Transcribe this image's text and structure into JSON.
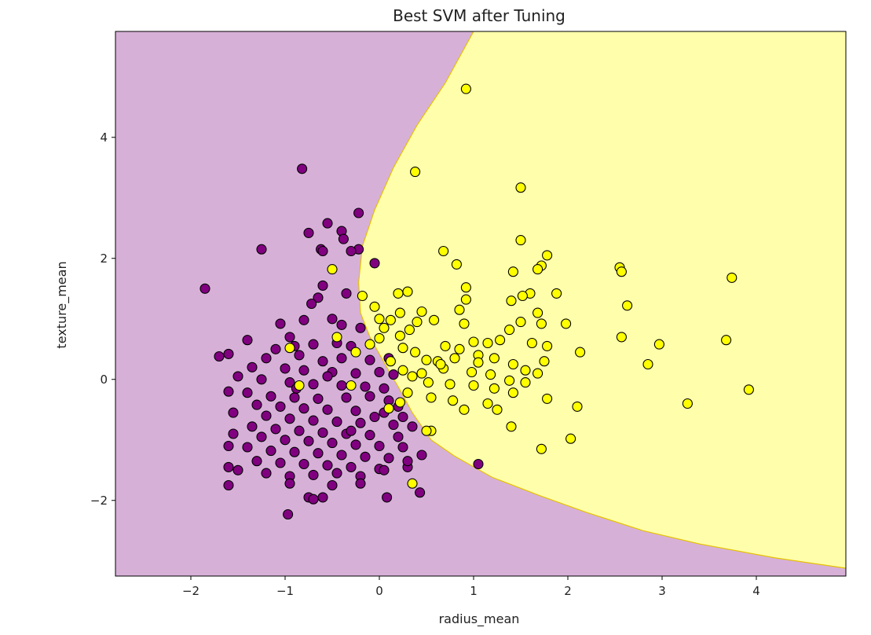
{
  "chart_data": {
    "type": "scatter",
    "title": "Best SVM after Tuning",
    "xlabel": "radius_mean",
    "ylabel": "texture_mean",
    "xlim": [
      -2.8,
      4.95
    ],
    "ylim": [
      -3.25,
      5.75
    ],
    "xticks": [
      -2,
      -1,
      0,
      1,
      2,
      3,
      4
    ],
    "xtick_labels": [
      "−2",
      "−1",
      "0",
      "1",
      "2",
      "3",
      "4"
    ],
    "yticks": [
      -2,
      0,
      2,
      4
    ],
    "ytick_labels": [
      "−2",
      "0",
      "2",
      "4"
    ],
    "grid": false,
    "legend": "none",
    "decision_regions": {
      "colors": {
        "class_0": "#d7b0d8",
        "class_1": "#ffffab"
      },
      "boundary_color": "#e5c000",
      "boundary": [
        [
          4.95,
          -3.12
        ],
        [
          4.2,
          -2.95
        ],
        [
          3.4,
          -2.72
        ],
        [
          2.8,
          -2.5
        ],
        [
          2.2,
          -2.2
        ],
        [
          1.7,
          -1.92
        ],
        [
          1.2,
          -1.62
        ],
        [
          0.8,
          -1.27
        ],
        [
          0.55,
          -1.0
        ],
        [
          0.35,
          -0.55
        ],
        [
          0.2,
          -0.12
        ],
        [
          0.05,
          0.28
        ],
        [
          -0.1,
          0.7
        ],
        [
          -0.2,
          1.1
        ],
        [
          -0.22,
          1.6
        ],
        [
          -0.18,
          2.2
        ],
        [
          -0.05,
          2.8
        ],
        [
          0.15,
          3.5
        ],
        [
          0.4,
          4.2
        ],
        [
          0.7,
          4.9
        ],
        [
          1.0,
          5.75
        ]
      ]
    },
    "series": [
      {
        "color": "#800080",
        "points": [
          [
            -0.82,
            3.48
          ],
          [
            -0.22,
            2.75
          ],
          [
            -0.55,
            2.58
          ],
          [
            -0.4,
            2.45
          ],
          [
            -0.75,
            2.42
          ],
          [
            -0.38,
            2.32
          ],
          [
            -0.22,
            2.15
          ],
          [
            -0.3,
            2.12
          ],
          [
            -0.62,
            2.15
          ],
          [
            -0.6,
            2.12
          ],
          [
            -1.25,
            2.15
          ],
          [
            -0.05,
            1.92
          ],
          [
            -1.85,
            1.5
          ],
          [
            -0.6,
            1.55
          ],
          [
            -0.35,
            1.42
          ],
          [
            -0.65,
            1.35
          ],
          [
            -0.72,
            1.25
          ],
          [
            -0.5,
            1.0
          ],
          [
            -0.8,
            0.98
          ],
          [
            -1.05,
            0.92
          ],
          [
            -0.4,
            0.9
          ],
          [
            -0.2,
            0.85
          ],
          [
            -0.95,
            0.7
          ],
          [
            -1.4,
            0.65
          ],
          [
            -1.1,
            0.5
          ],
          [
            -0.9,
            0.55
          ],
          [
            -0.7,
            0.58
          ],
          [
            -0.45,
            0.6
          ],
          [
            -0.3,
            0.55
          ],
          [
            -1.6,
            0.42
          ],
          [
            -1.7,
            0.38
          ],
          [
            -1.2,
            0.35
          ],
          [
            -0.85,
            0.4
          ],
          [
            -0.6,
            0.3
          ],
          [
            -0.4,
            0.35
          ],
          [
            -0.1,
            0.32
          ],
          [
            0.1,
            0.35
          ],
          [
            -1.35,
            0.2
          ],
          [
            -1.0,
            0.18
          ],
          [
            -0.8,
            0.15
          ],
          [
            -0.5,
            0.12
          ],
          [
            -0.25,
            0.1
          ],
          [
            0.0,
            0.12
          ],
          [
            0.15,
            0.08
          ],
          [
            -1.5,
            0.05
          ],
          [
            -1.25,
            0.0
          ],
          [
            -0.95,
            -0.05
          ],
          [
            -0.7,
            -0.08
          ],
          [
            -0.4,
            -0.1
          ],
          [
            -0.15,
            -0.12
          ],
          [
            0.05,
            -0.15
          ],
          [
            -1.6,
            -0.2
          ],
          [
            -1.4,
            -0.22
          ],
          [
            -1.15,
            -0.28
          ],
          [
            -0.9,
            -0.3
          ],
          [
            -0.65,
            -0.32
          ],
          [
            -0.35,
            -0.3
          ],
          [
            -0.1,
            -0.28
          ],
          [
            0.1,
            -0.35
          ],
          [
            0.2,
            -0.45
          ],
          [
            -1.3,
            -0.42
          ],
          [
            -1.05,
            -0.45
          ],
          [
            -0.8,
            -0.48
          ],
          [
            -0.55,
            -0.5
          ],
          [
            -0.25,
            -0.52
          ],
          [
            0.05,
            -0.55
          ],
          [
            0.25,
            -0.62
          ],
          [
            -1.55,
            -0.55
          ],
          [
            -1.2,
            -0.6
          ],
          [
            -0.95,
            -0.65
          ],
          [
            -0.7,
            -0.68
          ],
          [
            -0.45,
            -0.7
          ],
          [
            -0.2,
            -0.72
          ],
          [
            0.15,
            -0.75
          ],
          [
            0.35,
            -0.78
          ],
          [
            -1.35,
            -0.78
          ],
          [
            -1.1,
            -0.82
          ],
          [
            -0.85,
            -0.85
          ],
          [
            -0.6,
            -0.88
          ],
          [
            -0.35,
            -0.9
          ],
          [
            -0.1,
            -0.92
          ],
          [
            0.2,
            -0.95
          ],
          [
            -1.55,
            -0.9
          ],
          [
            -1.25,
            -0.95
          ],
          [
            -1.0,
            -1.0
          ],
          [
            -0.75,
            -1.02
          ],
          [
            -0.5,
            -1.05
          ],
          [
            -0.25,
            -1.08
          ],
          [
            0.0,
            -1.1
          ],
          [
            0.25,
            -1.12
          ],
          [
            -1.6,
            -1.1
          ],
          [
            -1.4,
            -1.12
          ],
          [
            -1.15,
            -1.18
          ],
          [
            -0.9,
            -1.2
          ],
          [
            -0.65,
            -1.22
          ],
          [
            -0.4,
            -1.25
          ],
          [
            -0.15,
            -1.28
          ],
          [
            0.1,
            -1.3
          ],
          [
            0.45,
            -1.25
          ],
          [
            -1.3,
            -1.35
          ],
          [
            -1.05,
            -1.38
          ],
          [
            -0.8,
            -1.4
          ],
          [
            -0.55,
            -1.42
          ],
          [
            -0.3,
            -1.45
          ],
          [
            0.0,
            -1.48
          ],
          [
            0.3,
            -1.45
          ],
          [
            -1.6,
            -1.45
          ],
          [
            -1.5,
            -1.5
          ],
          [
            -1.2,
            -1.55
          ],
          [
            -0.95,
            -1.6
          ],
          [
            -0.7,
            -1.58
          ],
          [
            -0.45,
            -1.55
          ],
          [
            -0.2,
            -1.6
          ],
          [
            0.05,
            -1.5
          ],
          [
            1.05,
            -1.4
          ],
          [
            -1.6,
            -1.75
          ],
          [
            -0.95,
            -1.72
          ],
          [
            -0.5,
            -1.75
          ],
          [
            -0.2,
            -1.72
          ],
          [
            -0.75,
            -1.95
          ],
          [
            -0.7,
            -1.98
          ],
          [
            -0.6,
            -1.95
          ],
          [
            0.08,
            -1.95
          ],
          [
            0.43,
            -1.87
          ],
          [
            -0.97,
            -2.23
          ],
          [
            0.3,
            -1.35
          ],
          [
            -0.88,
            -0.15
          ],
          [
            -0.55,
            0.05
          ],
          [
            -0.3,
            -0.85
          ],
          [
            -0.05,
            -0.62
          ]
        ]
      },
      {
        "color": "#ffff00",
        "points": [
          [
            0.92,
            4.8
          ],
          [
            0.38,
            3.43
          ],
          [
            1.5,
            3.17
          ],
          [
            1.5,
            2.3
          ],
          [
            0.68,
            2.12
          ],
          [
            1.78,
            2.05
          ],
          [
            1.72,
            1.88
          ],
          [
            0.82,
            1.9
          ],
          [
            2.55,
            1.85
          ],
          [
            1.68,
            1.82
          ],
          [
            1.42,
            1.78
          ],
          [
            2.57,
            1.78
          ],
          [
            3.74,
            1.68
          ],
          [
            0.92,
            1.52
          ],
          [
            1.88,
            1.42
          ],
          [
            1.6,
            1.42
          ],
          [
            1.52,
            1.38
          ],
          [
            0.3,
            1.45
          ],
          [
            0.2,
            1.42
          ],
          [
            0.92,
            1.32
          ],
          [
            1.4,
            1.3
          ],
          [
            2.63,
            1.22
          ],
          [
            -0.18,
            1.38
          ],
          [
            -0.05,
            1.2
          ],
          [
            0.22,
            1.1
          ],
          [
            0.45,
            1.12
          ],
          [
            0.85,
            1.15
          ],
          [
            1.68,
            1.1
          ],
          [
            0.0,
            1.0
          ],
          [
            0.12,
            0.98
          ],
          [
            0.4,
            0.95
          ],
          [
            0.58,
            0.98
          ],
          [
            0.9,
            0.92
          ],
          [
            1.5,
            0.95
          ],
          [
            1.72,
            0.92
          ],
          [
            1.98,
            0.92
          ],
          [
            0.05,
            0.85
          ],
          [
            0.32,
            0.82
          ],
          [
            1.38,
            0.82
          ],
          [
            -0.45,
            0.7
          ],
          [
            0.0,
            0.68
          ],
          [
            0.22,
            0.72
          ],
          [
            2.57,
            0.7
          ],
          [
            3.68,
            0.65
          ],
          [
            2.97,
            0.58
          ],
          [
            -0.95,
            0.52
          ],
          [
            0.38,
            0.45
          ],
          [
            0.7,
            0.55
          ],
          [
            0.85,
            0.5
          ],
          [
            1.0,
            0.62
          ],
          [
            1.15,
            0.6
          ],
          [
            1.28,
            0.65
          ],
          [
            1.62,
            0.6
          ],
          [
            1.78,
            0.55
          ],
          [
            2.13,
            0.45
          ],
          [
            0.12,
            0.3
          ],
          [
            0.5,
            0.32
          ],
          [
            0.62,
            0.3
          ],
          [
            0.8,
            0.35
          ],
          [
            1.05,
            0.4
          ],
          [
            1.22,
            0.35
          ],
          [
            1.42,
            0.25
          ],
          [
            1.75,
            0.3
          ],
          [
            2.85,
            0.25
          ],
          [
            0.25,
            0.15
          ],
          [
            0.45,
            0.1
          ],
          [
            0.68,
            0.18
          ],
          [
            0.98,
            0.12
          ],
          [
            1.18,
            0.08
          ],
          [
            1.55,
            0.15
          ],
          [
            1.68,
            0.1
          ],
          [
            0.52,
            -0.05
          ],
          [
            0.75,
            -0.08
          ],
          [
            1.0,
            -0.1
          ],
          [
            1.22,
            -0.15
          ],
          [
            1.38,
            -0.02
          ],
          [
            1.55,
            -0.05
          ],
          [
            -0.3,
            -0.1
          ],
          [
            0.3,
            -0.22
          ],
          [
            0.55,
            -0.3
          ],
          [
            0.78,
            -0.35
          ],
          [
            1.15,
            -0.4
          ],
          [
            1.42,
            -0.22
          ],
          [
            1.78,
            -0.32
          ],
          [
            2.1,
            -0.45
          ],
          [
            3.92,
            -0.17
          ],
          [
            3.27,
            -0.4
          ],
          [
            0.22,
            -0.38
          ],
          [
            1.25,
            -0.5
          ],
          [
            0.9,
            -0.5
          ],
          [
            1.4,
            -0.78
          ],
          [
            0.55,
            -0.85
          ],
          [
            2.03,
            -0.98
          ],
          [
            1.72,
            -1.15
          ],
          [
            0.35,
            -1.72
          ],
          [
            -0.5,
            1.82
          ],
          [
            -0.85,
            -0.1
          ],
          [
            -0.25,
            0.45
          ],
          [
            0.1,
            -0.48
          ],
          [
            0.5,
            -0.85
          ],
          [
            0.25,
            0.52
          ],
          [
            -0.1,
            0.58
          ],
          [
            1.05,
            0.28
          ],
          [
            0.65,
            0.25
          ],
          [
            0.35,
            0.05
          ]
        ]
      }
    ]
  }
}
